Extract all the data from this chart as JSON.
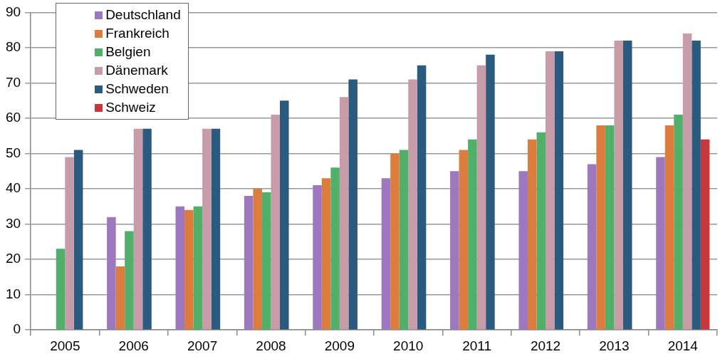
{
  "chart_data": {
    "type": "bar",
    "categories": [
      "2005",
      "2006",
      "2007",
      "2008",
      "2009",
      "2010",
      "2011",
      "2012",
      "2013",
      "2014"
    ],
    "series": [
      {
        "name": "Deutschland",
        "color": "#9e78bf",
        "values": [
          null,
          32,
          35,
          38,
          41,
          43,
          45,
          45,
          47,
          49
        ]
      },
      {
        "name": "Frankreich",
        "color": "#dc7d3e",
        "values": [
          null,
          18,
          34,
          40,
          43,
          50,
          51,
          54,
          58,
          58
        ]
      },
      {
        "name": "Belgien",
        "color": "#50b06a",
        "values": [
          23,
          28,
          35,
          39,
          46,
          51,
          54,
          56,
          58,
          61
        ]
      },
      {
        "name": "Dänemark",
        "color": "#c89ba8",
        "values": [
          49,
          57,
          57,
          61,
          66,
          71,
          75,
          79,
          82,
          84
        ]
      },
      {
        "name": "Schweden",
        "color": "#2a5a7e",
        "values": [
          51,
          57,
          57,
          65,
          71,
          75,
          78,
          79,
          82,
          82
        ]
      },
      {
        "name": "Schweiz",
        "color": "#c8373a",
        "values": [
          null,
          null,
          null,
          null,
          null,
          null,
          null,
          null,
          null,
          54
        ]
      }
    ],
    "ylim": [
      0,
      90
    ],
    "yticks": [
      0,
      10,
      20,
      30,
      40,
      50,
      60,
      70,
      80,
      90
    ],
    "grid": "y",
    "legend": "top left"
  }
}
